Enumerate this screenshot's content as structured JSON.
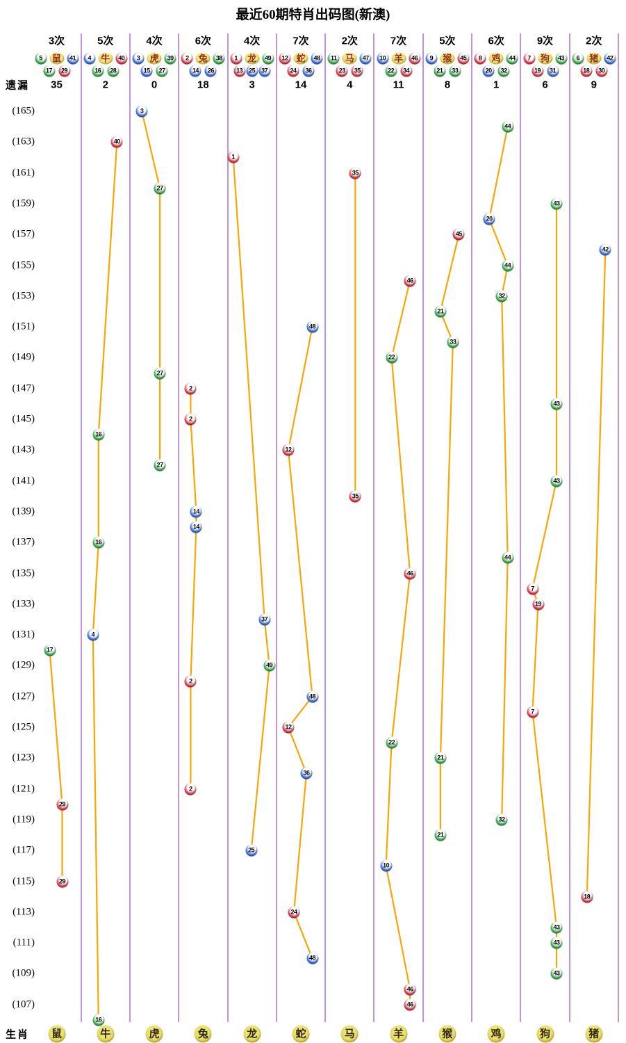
{
  "title": "最近60期特肖出码图(新澳)",
  "side_labels": {
    "miss": "遗漏",
    "zodiac": "生肖"
  },
  "colors": {
    "line": "#f9a604",
    "separator": "#c493d6",
    "ball_red": "#c01f35",
    "ball_blue": "#1f56c0",
    "ball_green": "#1f9235",
    "ball_yellow": "#e5d95c"
  },
  "ball_colors": {
    "red": [
      1,
      2,
      7,
      8,
      12,
      13,
      18,
      19,
      23,
      24,
      29,
      30,
      34,
      35,
      40,
      45,
      46
    ],
    "blue": [
      3,
      4,
      9,
      10,
      14,
      15,
      20,
      25,
      26,
      31,
      36,
      37,
      41,
      42,
      47,
      48
    ],
    "green": [
      5,
      6,
      11,
      16,
      17,
      21,
      22,
      27,
      28,
      32,
      33,
      38,
      39,
      43,
      44,
      49
    ]
  },
  "axis": {
    "labels": [
      "(165)",
      "(163)",
      "(161)",
      "(159)",
      "(157)",
      "(155)",
      "(153)",
      "(151)",
      "(149)",
      "(147)",
      "(145)",
      "(143)",
      "(141)",
      "(139)",
      "(137)",
      "(135)",
      "(133)",
      "(131)",
      "(129)",
      "(127)",
      "(125)",
      "(123)",
      "(121)",
      "(119)",
      "(117)",
      "(115)",
      "(113)",
      "(111)",
      "(109)",
      "(107)"
    ],
    "top_period": 165,
    "bottom_period": 106,
    "tick_step": 2
  },
  "chart_data": {
    "type": "scatter",
    "title": "最近60期特肖出码图(新澳)",
    "ylabel": "期号",
    "legend_position": "none",
    "grid": "vertical-separators",
    "columns": [
      {
        "zodiac": "鼠",
        "count_label": "3次",
        "miss": "35",
        "numbers": [
          5,
          17,
          29,
          41
        ],
        "points": [
          {
            "period": 130,
            "value": 17
          },
          {
            "period": 120,
            "value": 29
          },
          {
            "period": 115,
            "value": 29
          }
        ]
      },
      {
        "zodiac": "牛",
        "count_label": "5次",
        "miss": "2",
        "numbers": [
          4,
          16,
          28,
          40
        ],
        "points": [
          {
            "period": 163,
            "value": 40
          },
          {
            "period": 144,
            "value": 16
          },
          {
            "period": 137,
            "value": 16
          },
          {
            "period": 131,
            "value": 4
          },
          {
            "period": 106,
            "value": 16
          }
        ]
      },
      {
        "zodiac": "虎",
        "count_label": "4次",
        "miss": "0",
        "numbers": [
          3,
          15,
          27,
          39
        ],
        "points": [
          {
            "period": 165,
            "value": 3
          },
          {
            "period": 160,
            "value": 27
          },
          {
            "period": 148,
            "value": 27
          },
          {
            "period": 142,
            "value": 27
          }
        ]
      },
      {
        "zodiac": "兔",
        "count_label": "6次",
        "miss": "18",
        "numbers": [
          2,
          14,
          26,
          38
        ],
        "points": [
          {
            "period": 147,
            "value": 2
          },
          {
            "period": 145,
            "value": 2
          },
          {
            "period": 139,
            "value": 14
          },
          {
            "period": 138,
            "value": 14
          },
          {
            "period": 128,
            "value": 2
          },
          {
            "period": 121,
            "value": 2
          }
        ]
      },
      {
        "zodiac": "龙",
        "count_label": "4次",
        "miss": "3",
        "numbers": [
          1,
          13,
          25,
          37,
          49
        ],
        "points": [
          {
            "period": 162,
            "value": 1
          },
          {
            "period": 132,
            "value": 37
          },
          {
            "period": 129,
            "value": 49
          },
          {
            "period": 117,
            "value": 25
          }
        ]
      },
      {
        "zodiac": "蛇",
        "count_label": "7次",
        "miss": "14",
        "numbers": [
          12,
          24,
          36,
          48
        ],
        "points": [
          {
            "period": 151,
            "value": 48
          },
          {
            "period": 143,
            "value": 12
          },
          {
            "period": 127,
            "value": 48
          },
          {
            "period": 125,
            "value": 12
          },
          {
            "period": 122,
            "value": 36
          },
          {
            "period": 113,
            "value": 24
          },
          {
            "period": 110,
            "value": 48
          }
        ]
      },
      {
        "zodiac": "马",
        "count_label": "2次",
        "miss": "4",
        "numbers": [
          11,
          23,
          35,
          47
        ],
        "points": [
          {
            "period": 161,
            "value": 35
          },
          {
            "period": 140,
            "value": 35
          }
        ]
      },
      {
        "zodiac": "羊",
        "count_label": "7次",
        "miss": "11",
        "numbers": [
          10,
          22,
          34,
          46
        ],
        "points": [
          {
            "period": 154,
            "value": 46
          },
          {
            "period": 149,
            "value": 22
          },
          {
            "period": 135,
            "value": 46
          },
          {
            "period": 124,
            "value": 22
          },
          {
            "period": 116,
            "value": 10
          },
          {
            "period": 108,
            "value": 46
          },
          {
            "period": 107,
            "value": 46
          }
        ]
      },
      {
        "zodiac": "猴",
        "count_label": "5次",
        "miss": "8",
        "numbers": [
          9,
          21,
          33,
          45
        ],
        "points": [
          {
            "period": 157,
            "value": 45
          },
          {
            "period": 152,
            "value": 21
          },
          {
            "period": 150,
            "value": 33
          },
          {
            "period": 123,
            "value": 21
          },
          {
            "period": 118,
            "value": 21
          }
        ]
      },
      {
        "zodiac": "鸡",
        "count_label": "6次",
        "miss": "1",
        "numbers": [
          8,
          20,
          32,
          44
        ],
        "points": [
          {
            "period": 164,
            "value": 44
          },
          {
            "period": 158,
            "value": 20
          },
          {
            "period": 155,
            "value": 44
          },
          {
            "period": 153,
            "value": 32
          },
          {
            "period": 136,
            "value": 44
          },
          {
            "period": 119,
            "value": 32
          }
        ]
      },
      {
        "zodiac": "狗",
        "count_label": "9次",
        "miss": "6",
        "numbers": [
          7,
          19,
          31,
          43
        ],
        "points": [
          {
            "period": 159,
            "value": 43
          },
          {
            "period": 146,
            "value": 43
          },
          {
            "period": 141,
            "value": 43
          },
          {
            "period": 134,
            "value": 7
          },
          {
            "period": 133,
            "value": 19
          },
          {
            "period": 126,
            "value": 7
          },
          {
            "period": 112,
            "value": 43
          },
          {
            "period": 111,
            "value": 43
          },
          {
            "period": 109,
            "value": 43
          }
        ]
      },
      {
        "zodiac": "猪",
        "count_label": "2次",
        "miss": "9",
        "numbers": [
          6,
          18,
          30,
          42
        ],
        "points": [
          {
            "period": 156,
            "value": 42
          },
          {
            "period": 114,
            "value": 18
          }
        ]
      }
    ]
  }
}
